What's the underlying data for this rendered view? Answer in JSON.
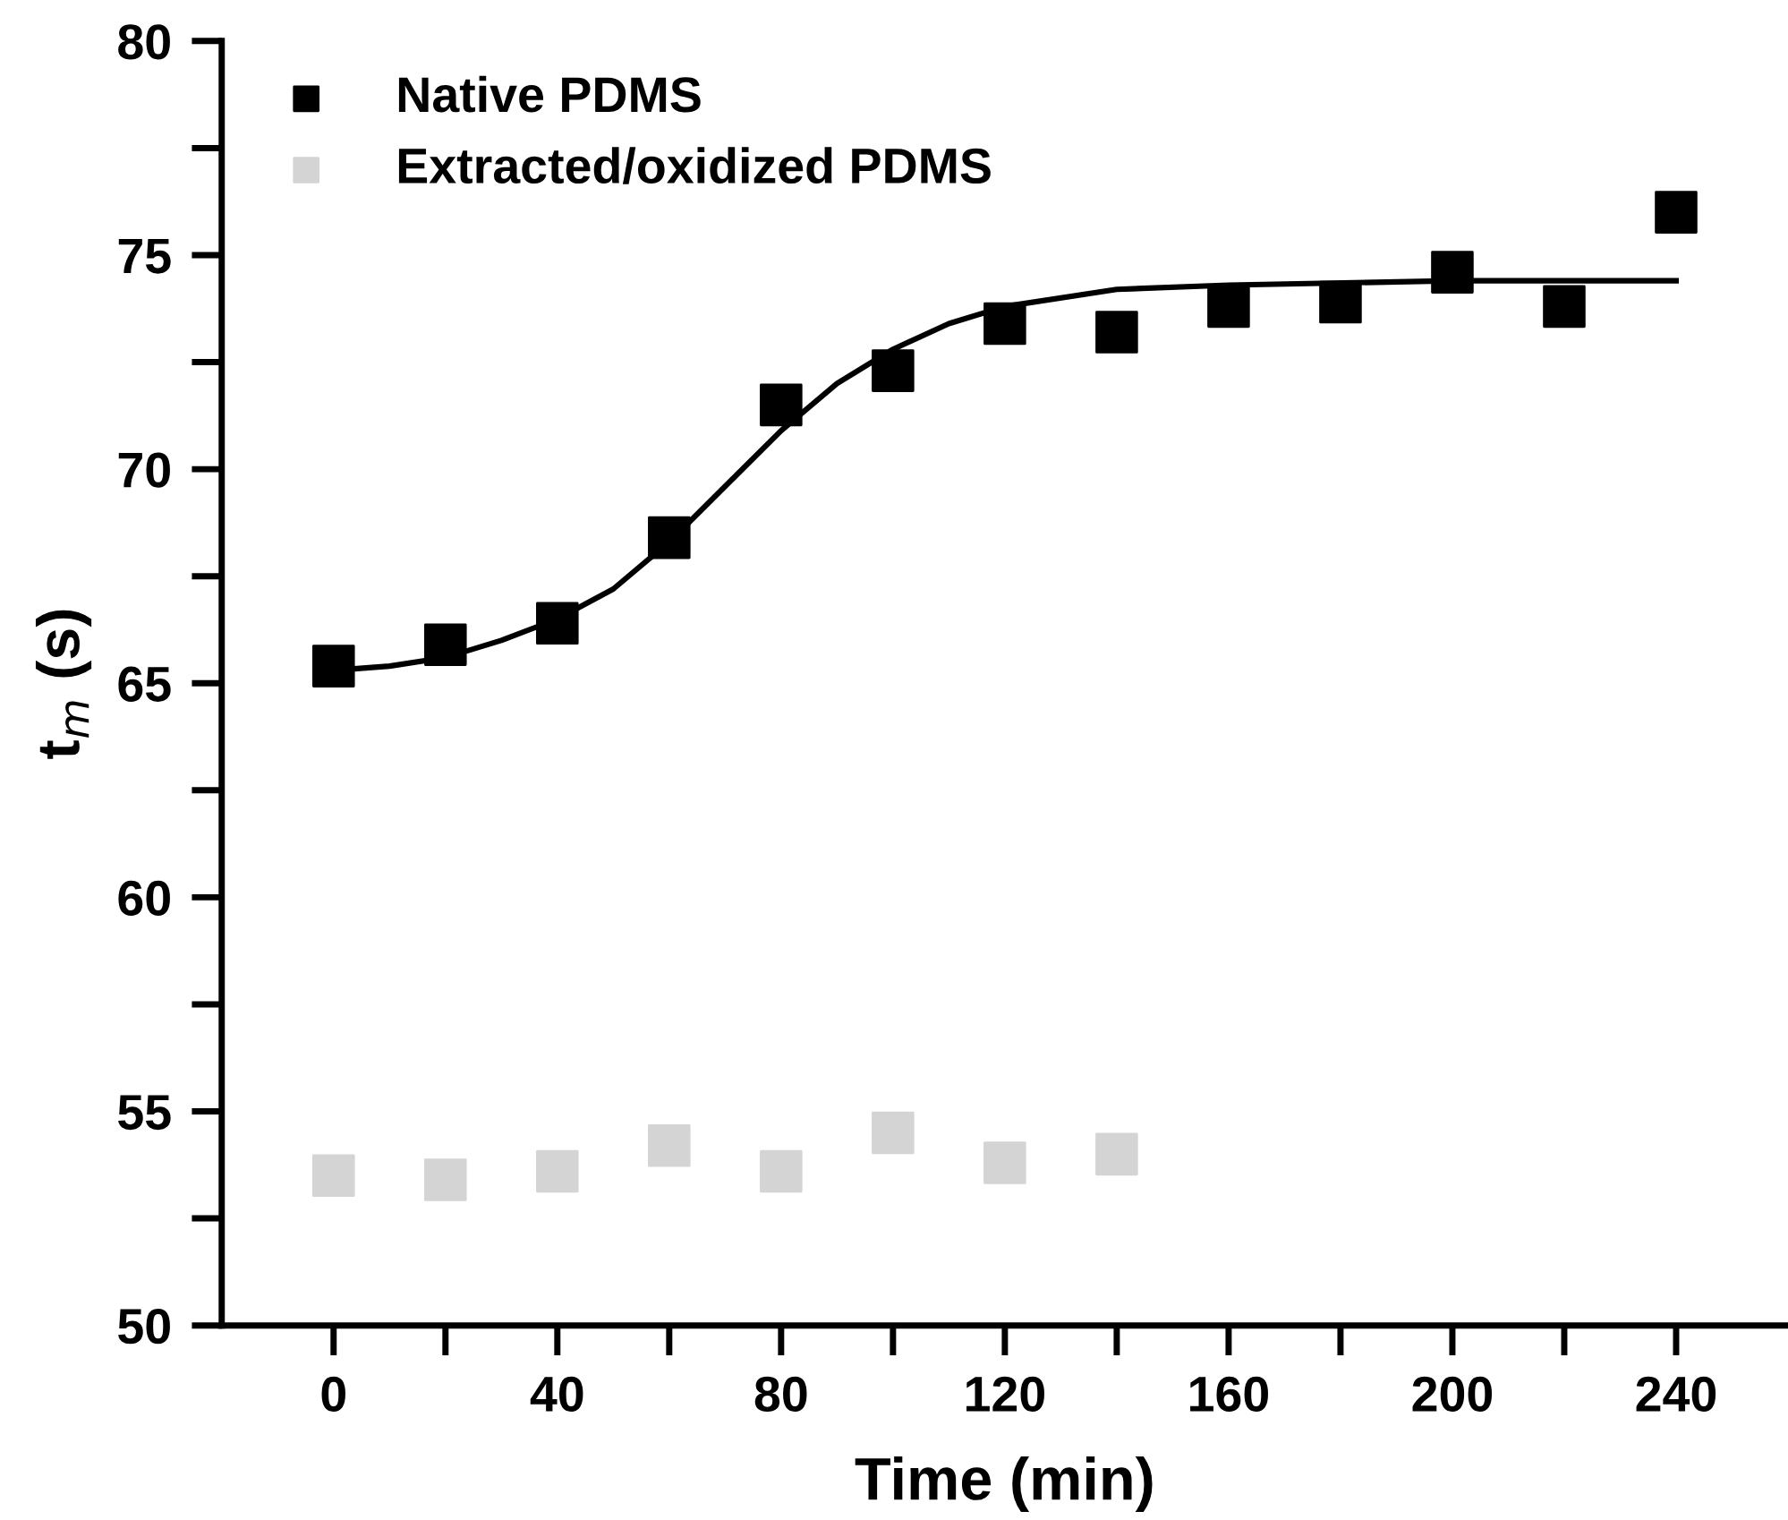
{
  "chart_data": {
    "type": "scatter",
    "xlabel": "Time (min)",
    "ylabel": "t$_{m}$ (s)",
    "xlim": [
      -20,
      260
    ],
    "ylim": [
      50,
      80
    ],
    "xticks": [
      0,
      40,
      80,
      120,
      160,
      200,
      240
    ],
    "yticks": [
      50,
      55,
      60,
      65,
      70,
      75,
      80
    ],
    "grid": false,
    "legend": "top left",
    "marker": "square",
    "series": [
      {
        "name": "Native PDMS",
        "color": "#000000",
        "x": [
          0,
          20,
          40,
          60,
          80,
          100,
          120,
          140,
          160,
          180,
          200,
          220,
          240
        ],
        "values": [
          65.4,
          65.9,
          66.4,
          68.4,
          71.5,
          72.3,
          73.4,
          73.2,
          73.8,
          73.9,
          74.6,
          73.8,
          76.0
        ]
      },
      {
        "name": "Extracted/oxidized PDMS",
        "color": "#d4d4d4",
        "x": [
          0,
          20,
          40,
          60,
          80,
          100,
          120,
          140
        ],
        "values": [
          53.5,
          53.4,
          53.6,
          54.2,
          53.6,
          54.5,
          53.8,
          54.0
        ]
      },
      {
        "type": "line",
        "color": "#000000",
        "marker": "none",
        "x": [
          0,
          10,
          20,
          30,
          40,
          50,
          60,
          70,
          80,
          90,
          100,
          110,
          120,
          140,
          160,
          200,
          240
        ],
        "values": [
          65.3,
          65.4,
          65.6,
          66.0,
          66.5,
          67.2,
          68.3,
          69.6,
          70.9,
          72.0,
          72.8,
          73.4,
          73.8,
          74.2,
          74.3,
          74.4,
          74.4
        ]
      }
    ]
  }
}
